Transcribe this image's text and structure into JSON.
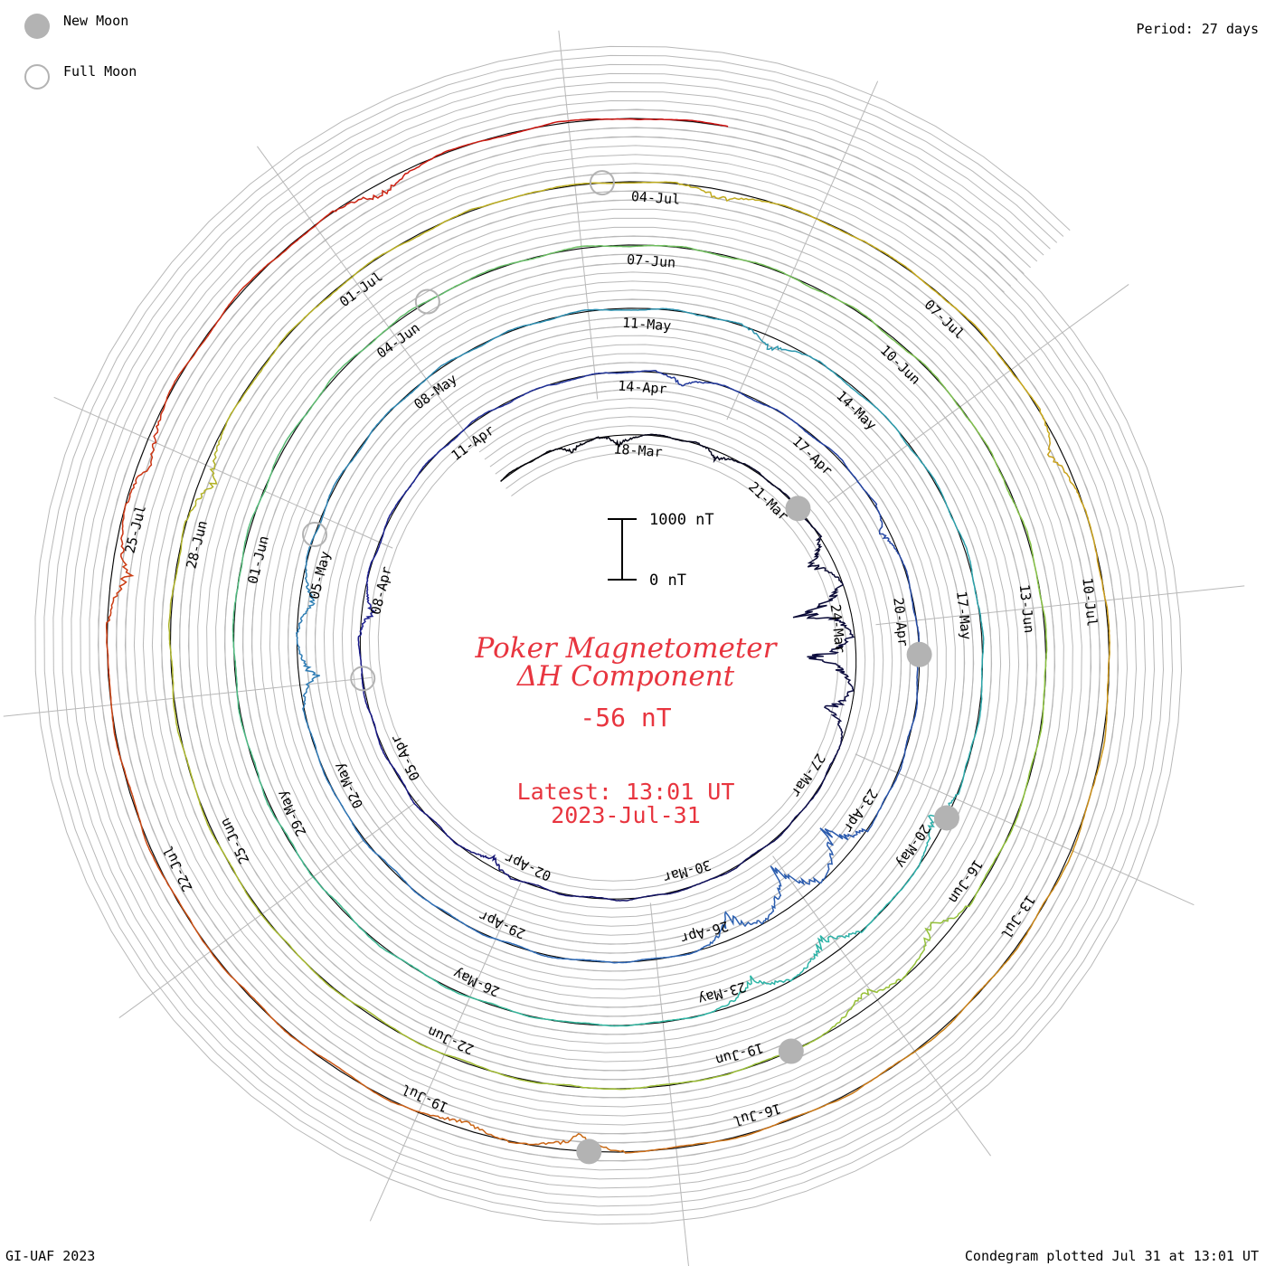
{
  "legend": {
    "new_moon": "New Moon",
    "full_moon": "Full Moon"
  },
  "header": {
    "period": "Period: 27 days"
  },
  "footer": {
    "credit": "GI-UAF 2023",
    "plotted": "Condegram plotted Jul 31 at 13:01 UT"
  },
  "center": {
    "title_line1": "Poker Magnetometer",
    "title_line2": "ΔH Component",
    "value": "-56 nT",
    "latest_line1": "Latest: 13:01 UT",
    "latest_line2": "2023-Jul-31"
  },
  "scale_bar": {
    "top_label": "1000 nT",
    "bottom_label": "0 nT",
    "span_nT": 1000
  },
  "chart_data": {
    "type": "line",
    "subtype": "condegram-spiral",
    "title": "Poker Magnetometer ΔH Component",
    "period_days": 27,
    "start_date": "2023-03-15",
    "end_date": "2023-07-31",
    "latest_value_nT": -56,
    "tick_labels": [
      "18-Mar",
      "21-Mar",
      "24-Mar",
      "27-Mar",
      "30-Mar",
      "02-Apr",
      "05-Apr",
      "08-Apr",
      "11-Apr",
      "14-Apr",
      "17-Apr",
      "20-Apr",
      "23-Apr",
      "26-Apr",
      "29-Apr",
      "02-May",
      "05-May",
      "08-May",
      "11-May",
      "14-May",
      "17-May",
      "20-May",
      "23-May",
      "26-May",
      "29-May",
      "01-Jun",
      "04-Jun",
      "07-Jun",
      "10-Jun",
      "13-Jun",
      "16-Jun",
      "19-Jun",
      "22-Jun",
      "25-Jun",
      "28-Jun",
      "01-Jul",
      "04-Jul",
      "07-Jul",
      "10-Jul",
      "13-Jul",
      "16-Jul",
      "19-Jul",
      "22-Jul",
      "25-Jul"
    ],
    "new_moons": [
      "2023-03-21",
      "2023-04-20",
      "2023-05-19",
      "2023-06-18",
      "2023-07-17"
    ],
    "full_moons": [
      "2023-04-06",
      "2023-05-05",
      "2023-06-04",
      "2023-07-03"
    ],
    "disturbances": [
      {
        "date": "2023-03-16",
        "peak_nT": -150
      },
      {
        "date": "2023-03-17",
        "peak_nT": -200
      },
      {
        "date": "2023-03-19",
        "peak_nT": -180
      },
      {
        "date": "2023-03-22",
        "peak_nT": -600
      },
      {
        "date": "2023-03-23",
        "peak_nT": -1100
      },
      {
        "date": "2023-03-24",
        "peak_nT": -1000
      },
      {
        "date": "2023-03-25",
        "peak_nT": -500
      },
      {
        "date": "2023-04-02",
        "peak_nT": -200
      },
      {
        "date": "2023-04-07",
        "peak_nT": -250
      },
      {
        "date": "2023-04-14",
        "peak_nT": -200
      },
      {
        "date": "2023-04-18",
        "peak_nT": -200
      },
      {
        "date": "2023-04-23",
        "peak_nT": -700
      },
      {
        "date": "2023-04-24",
        "peak_nT": -900
      },
      {
        "date": "2023-04-25",
        "peak_nT": -500
      },
      {
        "date": "2023-05-03",
        "peak_nT": -350
      },
      {
        "date": "2023-05-04",
        "peak_nT": -300
      },
      {
        "date": "2023-05-12",
        "peak_nT": -250
      },
      {
        "date": "2023-05-19",
        "peak_nT": -300
      },
      {
        "date": "2023-05-21",
        "peak_nT": -500
      },
      {
        "date": "2023-05-22",
        "peak_nT": -400
      },
      {
        "date": "2023-06-16",
        "peak_nT": -400
      },
      {
        "date": "2023-06-17",
        "peak_nT": -350
      },
      {
        "date": "2023-06-28",
        "peak_nT": -300
      },
      {
        "date": "2023-07-04",
        "peak_nT": -200
      },
      {
        "date": "2023-07-08",
        "peak_nT": -250
      },
      {
        "date": "2023-07-17",
        "peak_nT": -300
      },
      {
        "date": "2023-07-18",
        "peak_nT": -200
      },
      {
        "date": "2023-07-24",
        "peak_nT": -350
      },
      {
        "date": "2023-07-25",
        "peak_nT": -300
      },
      {
        "date": "2023-07-28",
        "peak_nT": -250
      }
    ],
    "colors": {
      "spiral_start": "#000000",
      "spiral_mid1": "#1a1a8c",
      "spiral_mid2": "#2f6fb8",
      "spiral_mid3": "#2bb5a6",
      "spiral_mid4": "#8fc23a",
      "spiral_mid5": "#c9a81a",
      "spiral_end": "#cc1010",
      "grid": "#b8b8b8",
      "baseline": "#000000",
      "moon": "#b3b3b3",
      "title": "#e8353f"
    }
  }
}
